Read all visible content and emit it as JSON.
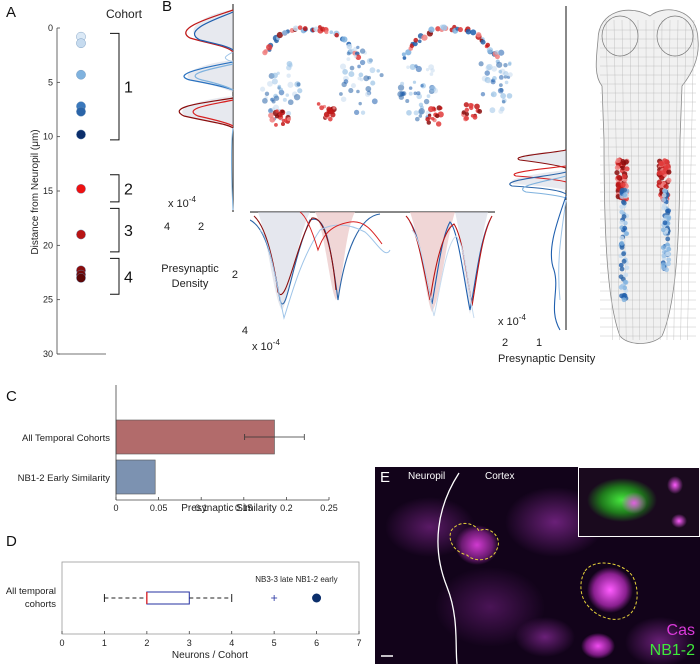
{
  "figure": {
    "panel_a": {
      "letter": "A",
      "legend_title": "Cohort",
      "ylabel": "Distance from Neuropil (μm)",
      "ticks": [
        "0",
        "5",
        "10",
        "15",
        "20",
        "25",
        "30"
      ],
      "ylim": [
        0,
        30
      ],
      "cohorts": [
        {
          "label": "1",
          "range": [
            0.5,
            10.3
          ],
          "points": [
            {
              "y": 0.8,
              "color": "#dbe9f6"
            },
            {
              "y": 1.4,
              "color": "#c6dbef"
            },
            {
              "y": 4.3,
              "color": "#7fb2de"
            },
            {
              "y": 7.2,
              "color": "#3a78bc"
            },
            {
              "y": 7.7,
              "color": "#2a64a8"
            },
            {
              "y": 9.8,
              "color": "#0b2e6b"
            }
          ]
        },
        {
          "label": "2",
          "range": [
            13.5,
            16.0
          ],
          "points": [
            {
              "y": 14.8,
              "color": "#ee1111"
            }
          ]
        },
        {
          "label": "3",
          "range": [
            16.6,
            20.6
          ],
          "points": [
            {
              "y": 19.0,
              "color": "#b81414"
            }
          ]
        },
        {
          "label": "4",
          "range": [
            21.2,
            24.5
          ],
          "points": [
            {
              "y": 22.3,
              "color": "#8a0d0d"
            },
            {
              "y": 22.7,
              "color": "#730a0a"
            },
            {
              "y": 23.0,
              "color": "#5e0707"
            }
          ]
        }
      ]
    },
    "panel_b": {
      "letter": "B",
      "ylabel_line1": "Presynaptic",
      "ylabel_line2": "Density",
      "exp_label": "x 10",
      "exp_power": "-4",
      "left_ticks": [
        "4",
        "2"
      ],
      "bottom_ticks": [
        "2",
        "4"
      ],
      "right_ticks": [
        "2",
        "1"
      ],
      "xlabel_right": "Presynaptic Density"
    },
    "panel_c": {
      "letter": "C",
      "chart_data": {
        "type": "bar",
        "orientation": "horizontal",
        "categories": [
          "All Temporal Cohorts",
          "NB1-2 Early Similarity"
        ],
        "values": [
          0.186,
          0.046
        ],
        "error": [
          0.035,
          0
        ],
        "colors": [
          "#b26b6b",
          "#7c92b1"
        ],
        "xlabel": "Presynaptic Similarity",
        "xlim": [
          0,
          0.25
        ],
        "xticks": [
          "0",
          "0.05",
          "0.1",
          "0.15",
          "0.2",
          "0.25"
        ]
      }
    },
    "panel_d": {
      "letter": "D",
      "chart_data": {
        "type": "box",
        "category_line1": "All temporal",
        "category_line2": "cohorts",
        "whisker_low": 1,
        "q1": 2,
        "median": 2,
        "q3": 3,
        "whisker_high": 4,
        "outliers": [
          {
            "x": 5,
            "label": "NB3-3 late"
          }
        ],
        "marker": {
          "x": 6,
          "label": "NB1-2 early"
        },
        "xlabel": "Neurons / Cohort",
        "xlim": [
          0,
          7
        ],
        "xticks": [
          "0",
          "1",
          "2",
          "3",
          "4",
          "5",
          "6",
          "7"
        ]
      }
    },
    "panel_e": {
      "letter": "E",
      "label_neuropil": "Neuropil",
      "label_cortex": "Cortex",
      "channel_1": "Cas",
      "channel_2": "NB1-2",
      "colors": {
        "magenta": "#d93ad9",
        "green": "#3ee83a"
      }
    }
  }
}
